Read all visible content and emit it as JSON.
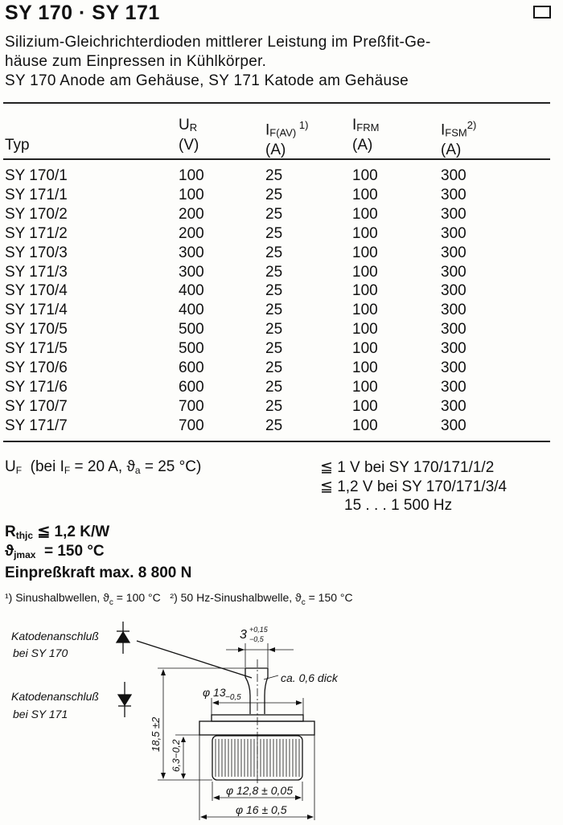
{
  "title": "SY 170 · SY 171",
  "corner_icon": "square-icon",
  "description": [
    "Silizium-Gleichrichterdioden mittlerer Leistung im Preßfit-Ge-",
    "häuse zum Einpressen in Kühlkörper.",
    "SY 170 Anode am Gehäuse, SY 171 Katode am Gehäuse"
  ],
  "table": {
    "headers": [
      {
        "name": "Typ",
        "unit": ""
      },
      {
        "name": "U",
        "sub": "R",
        "unit": "(V)"
      },
      {
        "name": "I",
        "sub": "F(AV)",
        "sup": " 1)",
        "unit": "(A)"
      },
      {
        "name": "I",
        "sub": "FRM",
        "unit": "(A)"
      },
      {
        "name": "I",
        "sub": "FSM",
        "sup": "2)",
        "unit": "(A)"
      }
    ],
    "rows": [
      [
        "SY 170/1",
        "100",
        "25",
        "100",
        "300"
      ],
      [
        "SY 171/1",
        "100",
        "25",
        "100",
        "300"
      ],
      [
        "SY 170/2",
        "200",
        "25",
        "100",
        "300"
      ],
      [
        "SY 171/2",
        "200",
        "25",
        "100",
        "300"
      ],
      [
        "SY 170/3",
        "300",
        "25",
        "100",
        "300"
      ],
      [
        "SY 171/3",
        "300",
        "25",
        "100",
        "300"
      ],
      [
        "SY 170/4",
        "400",
        "25",
        "100",
        "300"
      ],
      [
        "SY 171/4",
        "400",
        "25",
        "100",
        "300"
      ],
      [
        "SY 170/5",
        "500",
        "25",
        "100",
        "300"
      ],
      [
        "SY 171/5",
        "500",
        "25",
        "100",
        "300"
      ],
      [
        "SY 170/6",
        "600",
        "25",
        "100",
        "300"
      ],
      [
        "SY 171/6",
        "600",
        "25",
        "100",
        "300"
      ],
      [
        "SY 170/7",
        "700",
        "25",
        "100",
        "300"
      ],
      [
        "SY 171/7",
        "700",
        "25",
        "100",
        "300"
      ]
    ]
  },
  "specs": {
    "uf_label": "U",
    "uf_sub": "F",
    "uf_cond": "(bei I",
    "uf_cond_sub": "F",
    "uf_cond_rest": " = 20 A, ϑ",
    "uf_cond_sub2": "a",
    "uf_cond_end": " = 25 °C)",
    "uf_values": [
      "≦ 1 V bei SY 170/171/1/2",
      "≦ 1,2 V bei SY 170/171/3/4",
      "15 . . . 1 500 Hz"
    ],
    "rthjc_label": "R",
    "rthjc_sub": "thjc",
    "rthjc_value": " ≦ 1,2 K/W",
    "tj_label": "ϑ",
    "tj_sub": "jmax",
    "tj_value": "  = 150 °C",
    "force": "Einpreßkraft max. 8 800 N"
  },
  "footnotes": {
    "f1": "¹) Sinushalbwellen, ϑ",
    "f1_sub": "c",
    "f1_end": " = 100 °C",
    "f2": "²) 50 Hz-Sinushalbwelle, ϑ",
    "f2_sub": "c",
    "f2_end": " = 150 °C"
  },
  "drawing": {
    "label_sy170": [
      "Katodenanschluß",
      "bei SY 170"
    ],
    "label_sy171": [
      "Katodenanschluß",
      "bei SY 171"
    ],
    "dim_tab_width": "3",
    "dim_tab_tol_plus": "+0,15",
    "dim_tab_tol_minus": "−0,5",
    "dim_thickness": "ca. 0,6 dick",
    "dim_d13": "φ 13",
    "dim_d13_tol": "−0,5",
    "dim_height": "18,5 ±2",
    "dim_body": "6,3−0,2",
    "dim_d128": "φ 12,8 ± 0,05",
    "dim_d16": "φ 16 ± 0,5"
  }
}
